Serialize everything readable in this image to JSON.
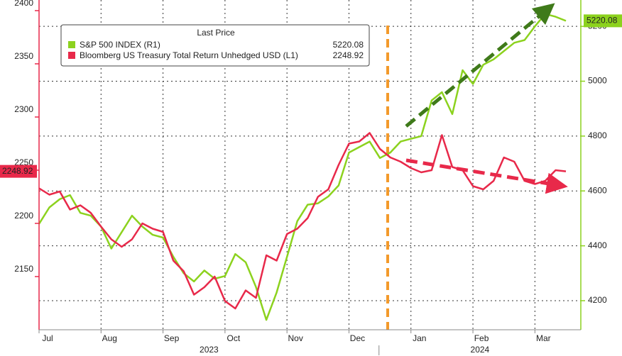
{
  "chart_data": {
    "type": "line",
    "categories": [
      "Jul",
      null,
      null,
      null,
      null,
      null,
      "Aug",
      null,
      null,
      null,
      null,
      null,
      "Sep",
      null,
      null,
      null,
      null,
      null,
      "Oct",
      null,
      null,
      null,
      null,
      null,
      "Nov",
      null,
      null,
      null,
      null,
      null,
      "Dec",
      null,
      null,
      null,
      null,
      null,
      "Jan",
      null,
      null,
      null,
      null,
      null,
      "Feb",
      null,
      null,
      null,
      null,
      null,
      "Mar",
      null,
      null,
      null
    ],
    "years": [
      "2023",
      "2024"
    ],
    "legend_title": "Last Price",
    "series": [
      {
        "name": "S&P 500 INDEX  (R1)",
        "color": "#8cd21e",
        "axis": "y2",
        "values": [
          4480,
          4540,
          4570,
          4585,
          4520,
          4510,
          4470,
          4390,
          4450,
          4510,
          4470,
          4440,
          4430,
          4360,
          4300,
          4270,
          4310,
          4280,
          4290,
          4370,
          4340,
          4250,
          4130,
          4230,
          4360,
          4490,
          4550,
          4555,
          4580,
          4620,
          4740,
          4760,
          4780,
          4720,
          4740,
          4780,
          4790,
          4800,
          4930,
          4960,
          4880,
          5040,
          4990,
          5060,
          5080,
          5110,
          5140,
          5150,
          5200,
          5245,
          5235,
          5220.08
        ]
      },
      {
        "name": "Bloomberg US Treasury Total Return Unhedged USD  (L1)",
        "color": "#e8294a",
        "axis": "y",
        "values": [
          2233,
          2227,
          2230,
          2213,
          2217,
          2210,
          2197,
          2185,
          2178,
          2185,
          2200,
          2195,
          2192,
          2165,
          2155,
          2133,
          2140,
          2150,
          2127,
          2120,
          2137,
          2130,
          2170,
          2165,
          2190,
          2195,
          2205,
          2225,
          2232,
          2255,
          2275,
          2277,
          2285,
          2270,
          2262,
          2258,
          2252,
          2248,
          2250,
          2283,
          2253,
          2250,
          2235,
          2232,
          2240,
          2262,
          2258,
          2240,
          2237,
          2240,
          2250,
          2248.92
        ]
      }
    ],
    "ylim": [
      2100,
      2410
    ],
    "yticks": [
      2150,
      2200,
      2250,
      2300,
      2350,
      2400
    ],
    "y2lim": [
      4094,
      5296
    ],
    "y2ticks": [
      4200,
      4400,
      4600,
      4800,
      5000,
      5200
    ],
    "grid": true
  }
}
